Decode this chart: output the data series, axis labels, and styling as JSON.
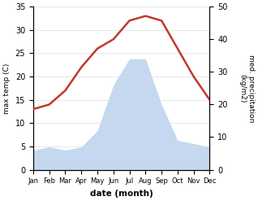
{
  "months": [
    "Jan",
    "Feb",
    "Mar",
    "Apr",
    "May",
    "Jun",
    "Jul",
    "Aug",
    "Sep",
    "Oct",
    "Nov",
    "Dec"
  ],
  "max_temp": [
    13,
    14,
    17,
    22,
    26,
    28,
    32,
    33,
    32,
    26,
    20,
    15
  ],
  "precipitation": [
    6,
    7,
    6,
    7,
    12,
    26,
    34,
    34,
    20,
    9,
    8,
    7
  ],
  "temp_ylim": [
    0,
    35
  ],
  "precip_ylim": [
    0,
    50
  ],
  "temp_color": "#c0392b",
  "precip_fill_color": "#c5d8f0",
  "xlabel": "date (month)",
  "ylabel_left": "max temp (C)",
  "ylabel_right": "med. precipitation\n(kg/m2)",
  "temp_linewidth": 1.8,
  "background_color": "#ffffff",
  "tick_labelsize": 7,
  "grid_color": "#dddddd"
}
